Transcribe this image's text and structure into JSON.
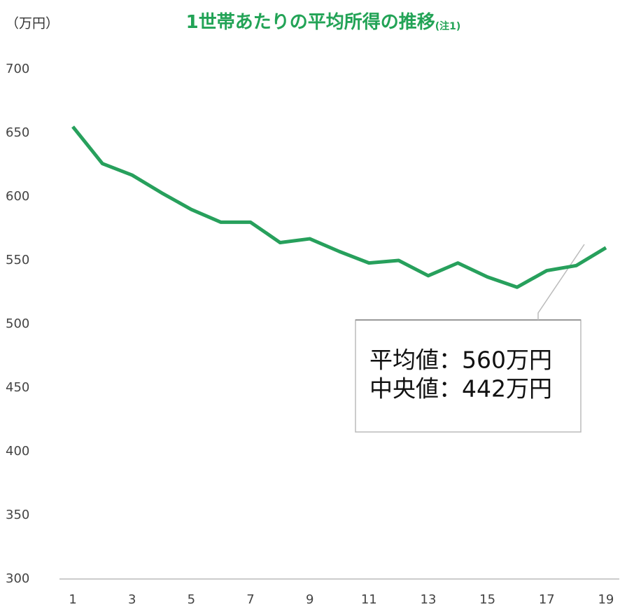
{
  "chart_data": {
    "type": "line",
    "title": "1世帯あたりの平均所得の推移",
    "title_note": "(注1)",
    "y_label": "（万円）",
    "x": [
      1,
      2,
      3,
      4,
      5,
      6,
      7,
      8,
      9,
      10,
      11,
      12,
      13,
      14,
      15,
      16,
      17,
      18,
      19
    ],
    "series": [
      {
        "color": "#27a05c",
        "values": [
          655,
          626,
          617,
          603,
          590,
          580,
          580,
          564,
          567,
          557,
          548,
          550,
          538,
          548,
          537,
          529,
          542,
          546,
          560
        ]
      }
    ],
    "xlim": [
      0.55,
      19.45
    ],
    "xticks": [
      1,
      3,
      5,
      7,
      9,
      11,
      13,
      15,
      17,
      19
    ],
    "ylim": [
      300,
      700
    ],
    "yticks": [
      300,
      350,
      400,
      450,
      500,
      550,
      600,
      650,
      700
    ],
    "grid": false,
    "annotations": [
      "平均値：560万円",
      "中央値：442万円"
    ]
  }
}
